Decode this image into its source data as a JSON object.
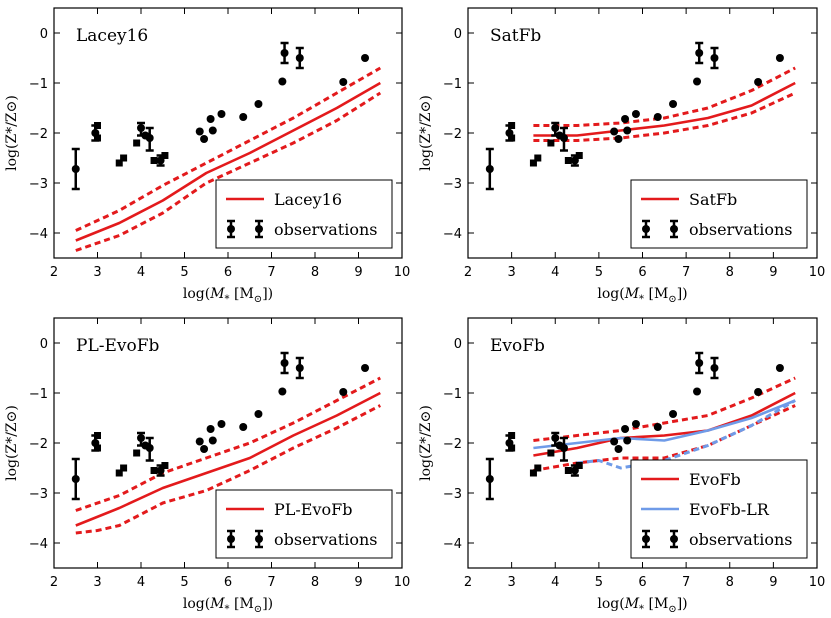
{
  "figure": {
    "xlabel_main": "log(",
    "xlabel_var": "M",
    "xlabel_sub": "*",
    "xlabel_unit": "[M",
    "xlabel_sun": "⊙",
    "xlabel_close": "])",
    "ylabel_text": "log(Z*/Z⊙)"
  },
  "colors": {
    "red": "#e31a1c",
    "blue": "#6f9be8",
    "black": "#000000"
  },
  "chart_data": [
    {
      "type": "line",
      "title": "Lacey16",
      "xlim": [
        2,
        10
      ],
      "ylim": [
        -4.5,
        0.5
      ],
      "xticks": [
        2,
        3,
        4,
        5,
        6,
        7,
        8,
        9,
        10
      ],
      "yticks": [
        0,
        -1,
        -2,
        -3,
        -4
      ],
      "series": [
        {
          "name": "Lacey16",
          "style": "solid",
          "color": "#e31a1c",
          "legend": true,
          "x": [
            2.5,
            3.5,
            4.5,
            5.5,
            6.5,
            7.5,
            8.5,
            9.5
          ],
          "y": [
            -4.15,
            -3.8,
            -3.35,
            -2.8,
            -2.4,
            -1.95,
            -1.5,
            -1.0
          ]
        },
        {
          "name": "Lacey16 upper",
          "style": "dashed",
          "color": "#e31a1c",
          "legend": false,
          "x": [
            2.5,
            3.5,
            4.5,
            5.5,
            6.5,
            7.5,
            8.5,
            9.5
          ],
          "y": [
            -3.95,
            -3.55,
            -3.05,
            -2.6,
            -2.15,
            -1.7,
            -1.2,
            -0.7
          ]
        },
        {
          "name": "Lacey16 lower",
          "style": "dashed",
          "color": "#e31a1c",
          "legend": false,
          "x": [
            2.5,
            3.5,
            4.5,
            5.5,
            6.5,
            7.5,
            8.5,
            9.5
          ],
          "y": [
            -4.35,
            -4.05,
            -3.6,
            -3.0,
            -2.6,
            -2.2,
            -1.75,
            -1.2
          ]
        }
      ],
      "legend": [
        "Lacey16",
        "observations"
      ]
    },
    {
      "type": "line",
      "title": "SatFb",
      "xlim": [
        2,
        10
      ],
      "ylim": [
        -4.5,
        0.5
      ],
      "xticks": [
        2,
        3,
        4,
        5,
        6,
        7,
        8,
        9,
        10
      ],
      "yticks": [
        0,
        -1,
        -2,
        -3,
        -4
      ],
      "series": [
        {
          "name": "SatFb",
          "style": "solid",
          "color": "#e31a1c",
          "legend": true,
          "x": [
            3.5,
            4.5,
            5.5,
            6.5,
            7.5,
            8.5,
            9.5
          ],
          "y": [
            -2.05,
            -2.05,
            -1.95,
            -1.85,
            -1.7,
            -1.45,
            -1.0
          ]
        },
        {
          "name": "SatFb upper",
          "style": "dashed",
          "color": "#e31a1c",
          "legend": false,
          "x": [
            3.5,
            4.5,
            5.5,
            6.5,
            7.5,
            8.5,
            9.5
          ],
          "y": [
            -1.85,
            -1.85,
            -1.8,
            -1.7,
            -1.5,
            -1.15,
            -0.7
          ]
        },
        {
          "name": "SatFb lower",
          "style": "dashed",
          "color": "#e31a1c",
          "legend": false,
          "x": [
            3.5,
            4.5,
            5.5,
            6.5,
            7.5,
            8.5,
            9.5
          ],
          "y": [
            -2.15,
            -2.15,
            -2.1,
            -2.0,
            -1.85,
            -1.6,
            -1.2
          ]
        }
      ],
      "legend": [
        "SatFb",
        "observations"
      ]
    },
    {
      "type": "line",
      "title": "PL-EvoFb",
      "xlim": [
        2,
        10
      ],
      "ylim": [
        -4.5,
        0.5
      ],
      "xticks": [
        2,
        3,
        4,
        5,
        6,
        7,
        8,
        9,
        10
      ],
      "yticks": [
        0,
        -1,
        -2,
        -3,
        -4
      ],
      "series": [
        {
          "name": "PL-EvoFb",
          "style": "solid",
          "color": "#e31a1c",
          "legend": true,
          "x": [
            2.5,
            3.5,
            4.5,
            5.5,
            6.5,
            7.5,
            8.5,
            9.5
          ],
          "y": [
            -3.65,
            -3.3,
            -2.9,
            -2.6,
            -2.3,
            -1.85,
            -1.45,
            -1.0
          ]
        },
        {
          "name": "PL-EvoFb upper",
          "style": "dashed",
          "color": "#e31a1c",
          "legend": false,
          "x": [
            2.5,
            3.5,
            4.5,
            5.5,
            6.5,
            7.5,
            8.5,
            9.5
          ],
          "y": [
            -3.35,
            -3.05,
            -2.6,
            -2.3,
            -2.0,
            -1.6,
            -1.15,
            -0.7
          ]
        },
        {
          "name": "PL-EvoFb lower",
          "style": "dashed",
          "color": "#e31a1c",
          "legend": false,
          "x": [
            2.5,
            3.0,
            3.5,
            4.5,
            5.5,
            6.5,
            7.5,
            8.5,
            9.5
          ],
          "y": [
            -3.8,
            -3.75,
            -3.65,
            -3.2,
            -2.95,
            -2.55,
            -2.1,
            -1.7,
            -1.25
          ]
        }
      ],
      "legend": [
        "PL-EvoFb",
        "observations"
      ]
    },
    {
      "type": "line",
      "title": "EvoFb",
      "xlim": [
        2,
        10
      ],
      "ylim": [
        -4.5,
        0.5
      ],
      "xticks": [
        2,
        3,
        4,
        5,
        6,
        7,
        8,
        9,
        10
      ],
      "yticks": [
        0,
        -1,
        -2,
        -3,
        -4
      ],
      "series": [
        {
          "name": "EvoFb",
          "style": "solid",
          "color": "#e31a1c",
          "legend": true,
          "x": [
            3.5,
            4.5,
            5.5,
            6.5,
            7.5,
            8.5,
            9.5
          ],
          "y": [
            -2.25,
            -2.1,
            -1.9,
            -1.85,
            -1.75,
            -1.45,
            -1.0
          ]
        },
        {
          "name": "EvoFb upper",
          "style": "dashed",
          "color": "#e31a1c",
          "legend": false,
          "x": [
            3.5,
            4.5,
            5.5,
            6.5,
            7.5,
            8.5,
            9.5
          ],
          "y": [
            -1.95,
            -1.85,
            -1.75,
            -1.6,
            -1.45,
            -1.1,
            -0.7
          ]
        },
        {
          "name": "EvoFb lower",
          "style": "dashed",
          "color": "#e31a1c",
          "legend": false,
          "x": [
            3.5,
            4.5,
            5.5,
            6.0,
            6.5,
            7.5,
            8.5,
            9.5
          ],
          "y": [
            -2.55,
            -2.4,
            -2.3,
            -2.3,
            -2.3,
            -2.05,
            -1.65,
            -1.25
          ]
        },
        {
          "name": "EvoFb-LR",
          "style": "solid",
          "color": "#6f9be8",
          "legend": true,
          "x": [
            3.5,
            4.5,
            5.5,
            6.5,
            7.5,
            8.5,
            9.5
          ],
          "y": [
            -2.1,
            -2.0,
            -1.9,
            -1.95,
            -1.75,
            -1.5,
            -1.15
          ]
        },
        {
          "name": "EvoFb-LR lower",
          "style": "dashed",
          "color": "#6f9be8",
          "legend": false,
          "x": [
            4.5,
            5.0,
            5.5,
            6.5,
            7.5,
            8.5,
            9.5
          ],
          "y": [
            -2.4,
            -2.35,
            -2.5,
            -2.35,
            -2.05,
            -1.65,
            -1.15
          ]
        }
      ],
      "legend": [
        "EvoFb",
        "EvoFb-LR",
        "observations"
      ]
    }
  ],
  "observations": [
    {
      "x": 2.5,
      "y": -2.72,
      "lo": -3.12,
      "hi": -2.32,
      "m": "err"
    },
    {
      "x": 2.95,
      "y": -2.0,
      "lo": -2.15,
      "hi": -1.85,
      "m": "err"
    },
    {
      "x": 3.0,
      "y": -1.85,
      "m": "sq"
    },
    {
      "x": 3.0,
      "y": -2.1,
      "m": "sq"
    },
    {
      "x": 3.5,
      "y": -2.6,
      "m": "sq"
    },
    {
      "x": 3.6,
      "y": -2.5,
      "m": "sq"
    },
    {
      "x": 3.9,
      "y": -2.2,
      "m": "sq"
    },
    {
      "x": 4.0,
      "y": -1.9,
      "lo": -2.05,
      "hi": -1.8,
      "m": "err"
    },
    {
      "x": 4.1,
      "y": -2.05,
      "m": "circ"
    },
    {
      "x": 4.2,
      "y": -2.1,
      "lo": -2.35,
      "hi": -1.9,
      "m": "err"
    },
    {
      "x": 4.3,
      "y": -2.55,
      "m": "sq"
    },
    {
      "x": 4.45,
      "y": -2.55,
      "lo": -2.65,
      "hi": -2.45,
      "m": "err"
    },
    {
      "x": 4.55,
      "y": -2.45,
      "m": "sq"
    },
    {
      "x": 5.35,
      "y": -1.97,
      "m": "circ"
    },
    {
      "x": 5.45,
      "y": -2.12,
      "m": "circ"
    },
    {
      "x": 5.6,
      "y": -1.72,
      "m": "circ"
    },
    {
      "x": 5.65,
      "y": -1.95,
      "m": "circ"
    },
    {
      "x": 5.85,
      "y": -1.62,
      "m": "circ"
    },
    {
      "x": 6.35,
      "y": -1.68,
      "m": "circ"
    },
    {
      "x": 6.7,
      "y": -1.42,
      "m": "circ"
    },
    {
      "x": 7.25,
      "y": -0.97,
      "m": "circ"
    },
    {
      "x": 7.3,
      "y": -0.4,
      "lo": -0.6,
      "hi": -0.2,
      "m": "err"
    },
    {
      "x": 7.65,
      "y": -0.5,
      "lo": -0.7,
      "hi": -0.3,
      "m": "err"
    },
    {
      "x": 8.65,
      "y": -0.98,
      "m": "circ"
    },
    {
      "x": 9.15,
      "y": -0.5,
      "m": "circ"
    }
  ]
}
